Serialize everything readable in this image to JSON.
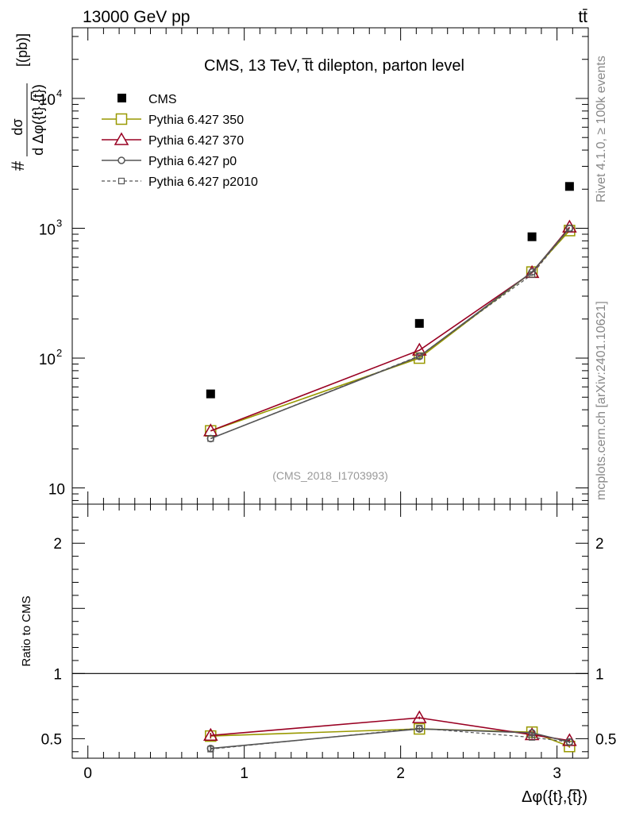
{
  "header": {
    "left": "13000 GeV pp",
    "right": "tt̄"
  },
  "side_text": {
    "upper": "Rivet 4.1.0, ≥ 100k events",
    "lower": "mcplots.cern.ch [arXiv:2401.10621]"
  },
  "colors": {
    "cms": "#000000",
    "p350": "#999900",
    "p370": "#990022",
    "p0": "#555555",
    "p2010": "#555555"
  },
  "chart_data": [
    {
      "type": "scatter",
      "panel": "main",
      "title": "CMS, 13 TeV, t̅t dilepton, parton level",
      "watermark": "(CMS_2018_I1703993)",
      "ylabel_num": "dσ",
      "ylabel_den": "d Δφ({t},{t̅})",
      "ylabel_hash": "#",
      "ylabel_unit": "[(pb)]",
      "yscale": "log",
      "ylim": [
        7.5,
        35000
      ],
      "xlim": [
        -0.1,
        3.2
      ],
      "y_ticks": [
        {
          "value": 10,
          "label": "10"
        },
        {
          "value": 100,
          "label": "10",
          "exp": "2"
        },
        {
          "value": 1000,
          "label": "10",
          "exp": "3"
        },
        {
          "value": 10000,
          "label": "10",
          "exp": "4"
        }
      ],
      "legend_position": "top-left",
      "series": [
        {
          "name": "CMS",
          "key": "cms",
          "marker": "filled-square",
          "line": "none",
          "x": [
            0.785,
            2.12,
            2.84,
            3.08
          ],
          "y": [
            53,
            185,
            860,
            2100
          ]
        },
        {
          "name": "Pythia 6.427 350",
          "key": "p350",
          "marker": "open-square",
          "line": "solid",
          "x": [
            0.785,
            2.12,
            2.84,
            3.08
          ],
          "y": [
            27.5,
            100,
            460,
            960
          ]
        },
        {
          "name": "Pythia 6.427 370",
          "key": "p370",
          "marker": "open-triangle",
          "line": "solid",
          "x": [
            0.785,
            2.12,
            2.84,
            3.08
          ],
          "y": [
            27.5,
            115,
            455,
            1020
          ]
        },
        {
          "name": "Pythia 6.427 p0",
          "key": "p0",
          "marker": "open-circle",
          "line": "solid",
          "x": [
            0.785,
            2.12,
            2.84,
            3.08
          ],
          "y": [
            24,
            103,
            460,
            1000
          ]
        },
        {
          "name": "Pythia 6.427 p2010",
          "key": "p2010",
          "marker": "small-open-square",
          "line": "dashed",
          "x": [
            0.785,
            2.12,
            2.84,
            3.08
          ],
          "y": [
            24,
            104,
            440,
            1000
          ]
        }
      ]
    },
    {
      "type": "scatter",
      "panel": "ratio",
      "ylabel": "Ratio to CMS",
      "xlabel": "Δφ({t},{t̅})",
      "ylim": [
        0.35,
        2.3
      ],
      "xlim": [
        -0.1,
        3.2
      ],
      "y_ticks": [
        {
          "value": 0.5,
          "label": "0.5"
        },
        {
          "value": 1,
          "label": "1"
        },
        {
          "value": 2,
          "label": "2"
        }
      ],
      "x_ticks": [
        {
          "value": 0,
          "label": "0"
        },
        {
          "value": 1,
          "label": "1"
        },
        {
          "value": 2,
          "label": "2"
        },
        {
          "value": 3,
          "label": "3"
        }
      ],
      "reference_line": 1,
      "series": [
        {
          "name": "Pythia 6.427 350",
          "key": "p350",
          "marker": "open-square",
          "line": "solid",
          "x": [
            0.785,
            2.12,
            2.84,
            3.08
          ],
          "y": [
            0.52,
            0.575,
            0.55,
            0.44
          ],
          "err": [
            0.02,
            0.01,
            0.01,
            0.01
          ]
        },
        {
          "name": "Pythia 6.427 370",
          "key": "p370",
          "marker": "open-triangle",
          "line": "solid",
          "x": [
            0.785,
            2.12,
            2.84,
            3.08
          ],
          "y": [
            0.525,
            0.66,
            0.53,
            0.485
          ],
          "err": [
            0.02,
            0.01,
            0.01,
            0.01
          ]
        },
        {
          "name": "Pythia 6.427 p0",
          "key": "p0",
          "marker": "open-circle",
          "line": "solid",
          "x": [
            0.785,
            2.12,
            2.84,
            3.08
          ],
          "y": [
            0.425,
            0.575,
            0.545,
            0.475
          ],
          "err": [
            0.025,
            0.01,
            0.01,
            0.01
          ]
        },
        {
          "name": "Pythia 6.427 p2010",
          "key": "p2010",
          "marker": "small-open-square",
          "line": "dashed",
          "x": [
            0.785,
            2.12,
            2.84,
            3.08
          ],
          "y": [
            0.42,
            0.58,
            0.51,
            0.475
          ],
          "err": [
            0.025,
            0.01,
            0.01,
            0.01
          ]
        }
      ]
    }
  ]
}
